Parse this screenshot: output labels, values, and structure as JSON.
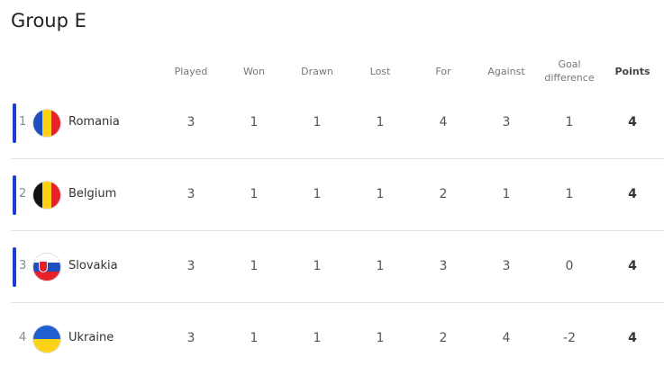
{
  "title": "Group E",
  "headers": {
    "played": "Played",
    "won": "Won",
    "drawn": "Drawn",
    "lost": "Lost",
    "for": "For",
    "against": "Against",
    "gd_line1": "Goal",
    "gd_line2": "difference",
    "points": "Points"
  },
  "accent": "#1d3bd6",
  "rows": [
    {
      "rank": "1",
      "team": "Romania",
      "played": "3",
      "won": "1",
      "drawn": "1",
      "lost": "1",
      "for": "4",
      "against": "3",
      "gd": "1",
      "points": "4",
      "highlight": true,
      "flag": "romania-flag-icon"
    },
    {
      "rank": "2",
      "team": "Belgium",
      "played": "3",
      "won": "1",
      "drawn": "1",
      "lost": "1",
      "for": "2",
      "against": "1",
      "gd": "1",
      "points": "4",
      "highlight": true,
      "flag": "belgium-flag-icon"
    },
    {
      "rank": "3",
      "team": "Slovakia",
      "played": "3",
      "won": "1",
      "drawn": "1",
      "lost": "1",
      "for": "3",
      "against": "3",
      "gd": "0",
      "points": "4",
      "highlight": true,
      "flag": "slovakia-flag-icon"
    },
    {
      "rank": "4",
      "team": "Ukraine",
      "played": "3",
      "won": "1",
      "drawn": "1",
      "lost": "1",
      "for": "2",
      "against": "4",
      "gd": "-2",
      "points": "4",
      "highlight": false,
      "flag": "ukraine-flag-icon"
    }
  ]
}
